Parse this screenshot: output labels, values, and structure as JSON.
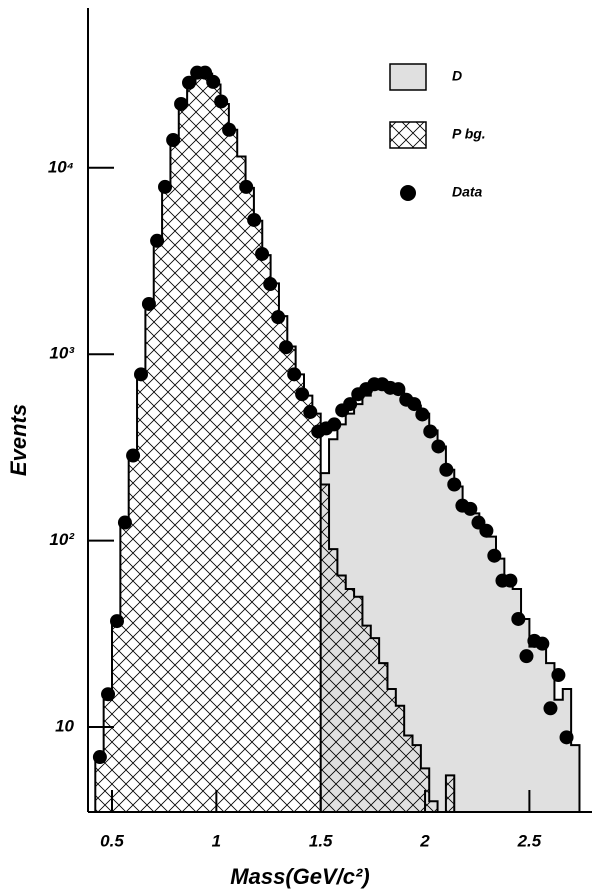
{
  "chart_data": {
    "type": "histogram",
    "x_label": "Mass(GeV/c²)",
    "y_label": "Events",
    "log_y": true,
    "legend": "upper right",
    "xlim": [
      0.385,
      2.8
    ],
    "ylim": [
      3.5,
      72000
    ],
    "xticks": [
      0.5,
      1,
      1.5,
      2,
      2.5
    ],
    "yticks": [
      10,
      {
        "value": 100,
        "label": "10²"
      },
      {
        "value": 1000,
        "label": "10³"
      },
      {
        "value": 10000,
        "label": "10⁴"
      }
    ],
    "series": [
      {
        "name": "D",
        "kind": "hist",
        "color": "#e0e0e0",
        "bins": [
          1.5,
          1.54,
          1.58,
          1.62,
          1.66,
          1.7,
          1.74,
          1.78,
          1.82,
          1.86,
          1.9,
          1.94,
          1.98,
          2.02,
          2.06,
          2.1,
          2.14,
          2.18,
          2.22,
          2.26,
          2.3,
          2.34,
          2.38,
          2.42,
          2.46,
          2.5,
          2.54,
          2.58,
          2.62,
          2.66,
          2.7,
          2.74
        ],
        "values": [
          230,
          350,
          420,
          480,
          540,
          600,
          650,
          680,
          680,
          650,
          580,
          530,
          480,
          390,
          320,
          240,
          195,
          155,
          140,
          120,
          105,
          80,
          62,
          55,
          38,
          27,
          28,
          22,
          14,
          16,
          8
        ]
      },
      {
        "name": "P bg.",
        "kind": "hatch",
        "color": "#000000",
        "bins": [
          0.42,
          0.46,
          0.5,
          0.54,
          0.58,
          0.62,
          0.66,
          0.7,
          0.74,
          0.78,
          0.82,
          0.86,
          0.9,
          0.94,
          0.98,
          1.02,
          1.06,
          1.1,
          1.14,
          1.18,
          1.22,
          1.26,
          1.3,
          1.34,
          1.38,
          1.42,
          1.46,
          1.5,
          1.54,
          1.58,
          1.62,
          1.66,
          1.7,
          1.74,
          1.78,
          1.82,
          1.86,
          1.9,
          1.94,
          1.98,
          2.02,
          2.06,
          2.1,
          2.14
        ],
        "values": [
          6.5,
          14,
          35,
          120,
          280,
          760,
          1800,
          4000,
          7800,
          14000,
          22000,
          28500,
          32000,
          32000,
          28000,
          22000,
          16000,
          11500,
          7800,
          5200,
          3400,
          2400,
          1600,
          1100,
          780,
          600,
          480,
          200,
          90,
          65,
          55,
          50,
          35,
          30,
          22,
          16,
          13,
          9,
          8,
          6,
          4,
          null,
          5.5
        ]
      },
      {
        "name": "Data",
        "kind": "points",
        "color": "#000000",
        "x": [
          0.442,
          0.481,
          0.524,
          0.562,
          0.601,
          0.639,
          0.677,
          0.716,
          0.754,
          0.793,
          0.831,
          0.869,
          0.908,
          0.946,
          0.985,
          1.023,
          1.061,
          1.143,
          1.181,
          1.219,
          1.258,
          1.296,
          1.334,
          1.373,
          1.411,
          1.45,
          1.488,
          1.526,
          1.565,
          1.603,
          1.641,
          1.68,
          1.718,
          1.757,
          1.795,
          1.833,
          1.872,
          1.91,
          1.948,
          1.987,
          2.025,
          2.064,
          2.102,
          2.14,
          2.179,
          2.217,
          2.256,
          2.294,
          2.332,
          2.371,
          2.409,
          2.447,
          2.486,
          2.524,
          2.562,
          2.601,
          2.639,
          2.678
        ],
        "values": [
          6.9,
          15,
          37,
          125,
          286,
          780,
          1860,
          4060,
          7900,
          14100,
          22000,
          28600,
          32400,
          32400,
          28900,
          22700,
          16000,
          7900,
          5250,
          3450,
          2380,
          1580,
          1090,
          780,
          610,
          490,
          385,
          400,
          420,
          500,
          540,
          610,
          650,
          690,
          690,
          660,
          650,
          570,
          540,
          475,
          385,
          320,
          240,
          200,
          154,
          148,
          125,
          113,
          83,
          61,
          61,
          38,
          24,
          29,
          28,
          12.6,
          19,
          8.8
        ]
      }
    ]
  }
}
